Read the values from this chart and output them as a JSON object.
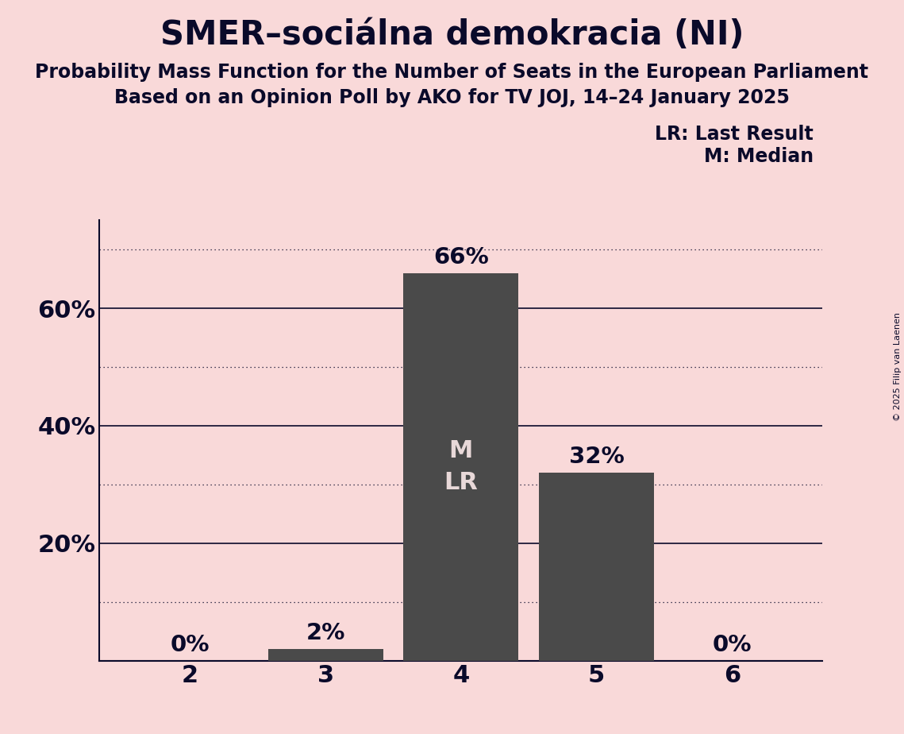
{
  "title": "SMER–sociálna demokracia (NI)",
  "subtitle1": "Probability Mass Function for the Number of Seats in the European Parliament",
  "subtitle2": "Based on an Opinion Poll by AKO for TV JOJ, 14–24 January 2025",
  "copyright": "© 2025 Filip van Laenen",
  "categories": [
    2,
    3,
    4,
    5,
    6
  ],
  "values": [
    0,
    2,
    66,
    32,
    0
  ],
  "bar_color": "#4a4a4a",
  "background_color": "#f9d9d9",
  "text_color": "#0a0a2a",
  "label_color_outside": "#0a0a2a",
  "label_color_inside": "#e8d8d8",
  "median_seat": 4,
  "last_result_seat": 4,
  "legend_lr": "LR: Last Result",
  "legend_m": "M: Median",
  "ymax": 75,
  "solid_gridlines": [
    20,
    40,
    60
  ],
  "dotted_gridlines": [
    10,
    30,
    50,
    70
  ],
  "ytick_labels": [
    "20%",
    "40%",
    "60%"
  ],
  "ytick_values": [
    20,
    40,
    60
  ]
}
